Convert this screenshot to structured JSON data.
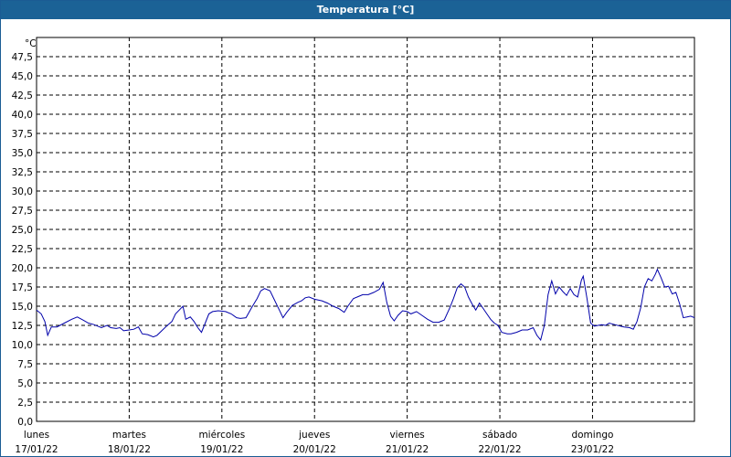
{
  "window": {
    "title": "Temperatura [°C]"
  },
  "chart_data": {
    "type": "line",
    "title": "Temperatura [°C]",
    "ylabel": "°C",
    "ylim": [
      0,
      50
    ],
    "grid": true,
    "y_ticks": [
      "0,0",
      "2,5",
      "5,0",
      "7,5",
      "10,0",
      "12,5",
      "15,0",
      "17,5",
      "20,0",
      "22,5",
      "25,0",
      "27,5",
      "30,0",
      "32,5",
      "35,0",
      "37,5",
      "40,0",
      "42,5",
      "45,0",
      "47,5"
    ],
    "x_ticks": [
      {
        "day": "lunes",
        "date": "17/01/22"
      },
      {
        "day": "martes",
        "date": "18/01/22"
      },
      {
        "day": "miércoles",
        "date": "19/01/22"
      },
      {
        "day": "jueves",
        "date": "20/01/22"
      },
      {
        "day": "viernes",
        "date": "21/01/22"
      },
      {
        "day": "sábado",
        "date": "22/01/22"
      },
      {
        "day": "domingo",
        "date": "23/01/22"
      }
    ],
    "xlim_days": [
      0,
      7
    ],
    "series": [
      {
        "color": "#0000aa",
        "points": [
          [
            0.0,
            14.5
          ],
          [
            0.05,
            14.0
          ],
          [
            0.09,
            13.0
          ],
          [
            0.12,
            11.2
          ],
          [
            0.16,
            12.3
          ],
          [
            0.22,
            12.3
          ],
          [
            0.3,
            12.8
          ],
          [
            0.38,
            13.3
          ],
          [
            0.44,
            13.6
          ],
          [
            0.5,
            13.2
          ],
          [
            0.56,
            12.8
          ],
          [
            0.62,
            12.6
          ],
          [
            0.7,
            12.2
          ],
          [
            0.76,
            12.5
          ],
          [
            0.8,
            12.2
          ],
          [
            0.86,
            12.1
          ],
          [
            0.9,
            12.2
          ],
          [
            0.94,
            11.8
          ],
          [
            1.0,
            11.9
          ],
          [
            1.05,
            12.0
          ],
          [
            1.1,
            12.3
          ],
          [
            1.14,
            11.4
          ],
          [
            1.2,
            11.3
          ],
          [
            1.26,
            11.0
          ],
          [
            1.3,
            11.2
          ],
          [
            1.36,
            11.9
          ],
          [
            1.42,
            12.6
          ],
          [
            1.46,
            13.0
          ],
          [
            1.5,
            14.0
          ],
          [
            1.54,
            14.5
          ],
          [
            1.58,
            15.0
          ],
          [
            1.61,
            13.3
          ],
          [
            1.66,
            13.6
          ],
          [
            1.7,
            13.0
          ],
          [
            1.74,
            12.2
          ],
          [
            1.78,
            11.6
          ],
          [
            1.82,
            12.8
          ],
          [
            1.86,
            14.0
          ],
          [
            1.9,
            14.3
          ],
          [
            1.96,
            14.4
          ],
          [
            2.04,
            14.3
          ],
          [
            2.1,
            14.0
          ],
          [
            2.16,
            13.5
          ],
          [
            2.2,
            13.4
          ],
          [
            2.26,
            13.5
          ],
          [
            2.32,
            14.8
          ],
          [
            2.38,
            16.0
          ],
          [
            2.42,
            17.0
          ],
          [
            2.46,
            17.3
          ],
          [
            2.52,
            17.0
          ],
          [
            2.56,
            16.0
          ],
          [
            2.62,
            14.5
          ],
          [
            2.66,
            13.5
          ],
          [
            2.7,
            14.2
          ],
          [
            2.76,
            15.1
          ],
          [
            2.82,
            15.5
          ],
          [
            2.86,
            15.7
          ],
          [
            2.9,
            16.1
          ],
          [
            2.94,
            16.2
          ],
          [
            3.0,
            15.9
          ],
          [
            3.08,
            15.7
          ],
          [
            3.14,
            15.4
          ],
          [
            3.2,
            15.0
          ],
          [
            3.26,
            14.7
          ],
          [
            3.32,
            14.2
          ],
          [
            3.36,
            15.0
          ],
          [
            3.42,
            16.0
          ],
          [
            3.48,
            16.3
          ],
          [
            3.52,
            16.5
          ],
          [
            3.58,
            16.5
          ],
          [
            3.64,
            16.8
          ],
          [
            3.7,
            17.2
          ],
          [
            3.74,
            18.1
          ],
          [
            3.78,
            15.5
          ],
          [
            3.82,
            13.7
          ],
          [
            3.86,
            13.1
          ],
          [
            3.9,
            13.8
          ],
          [
            3.95,
            14.4
          ],
          [
            4.0,
            14.3
          ],
          [
            4.04,
            14.0
          ],
          [
            4.1,
            14.3
          ],
          [
            4.16,
            13.8
          ],
          [
            4.22,
            13.3
          ],
          [
            4.28,
            12.9
          ],
          [
            4.34,
            12.9
          ],
          [
            4.4,
            13.2
          ],
          [
            4.46,
            14.8
          ],
          [
            4.5,
            16.0
          ],
          [
            4.54,
            17.4
          ],
          [
            4.58,
            17.9
          ],
          [
            4.62,
            17.5
          ],
          [
            4.66,
            16.2
          ],
          [
            4.7,
            15.3
          ],
          [
            4.74,
            14.5
          ],
          [
            4.78,
            15.4
          ],
          [
            4.82,
            14.7
          ],
          [
            4.86,
            14.0
          ],
          [
            4.9,
            13.3
          ],
          [
            4.94,
            12.8
          ],
          [
            4.98,
            12.5
          ],
          [
            5.02,
            11.6
          ],
          [
            5.08,
            11.4
          ],
          [
            5.12,
            11.4
          ],
          [
            5.18,
            11.6
          ],
          [
            5.24,
            11.9
          ],
          [
            5.3,
            11.9
          ],
          [
            5.36,
            12.2
          ],
          [
            5.4,
            11.2
          ],
          [
            5.44,
            10.6
          ],
          [
            5.48,
            12.5
          ],
          [
            5.52,
            16.5
          ],
          [
            5.56,
            18.3
          ],
          [
            5.6,
            16.6
          ],
          [
            5.64,
            17.5
          ],
          [
            5.68,
            16.9
          ],
          [
            5.72,
            16.4
          ],
          [
            5.76,
            17.3
          ],
          [
            5.8,
            16.5
          ],
          [
            5.84,
            16.2
          ],
          [
            5.88,
            18.4
          ],
          [
            5.9,
            18.9
          ],
          [
            5.94,
            16.0
          ],
          [
            5.98,
            12.8
          ],
          [
            6.02,
            12.4
          ],
          [
            6.06,
            12.5
          ],
          [
            6.1,
            12.6
          ],
          [
            6.14,
            12.5
          ],
          [
            6.18,
            12.8
          ],
          [
            6.24,
            12.6
          ],
          [
            6.3,
            12.4
          ],
          [
            6.34,
            12.3
          ],
          [
            6.4,
            12.2
          ],
          [
            6.44,
            12.0
          ],
          [
            6.48,
            13.0
          ],
          [
            6.52,
            14.8
          ],
          [
            6.56,
            17.5
          ],
          [
            6.6,
            18.6
          ],
          [
            6.64,
            18.3
          ],
          [
            6.68,
            19.2
          ],
          [
            6.7,
            19.8
          ],
          [
            6.74,
            18.7
          ],
          [
            6.78,
            17.5
          ],
          [
            6.82,
            17.6
          ],
          [
            6.86,
            16.6
          ],
          [
            6.9,
            16.8
          ],
          [
            6.94,
            15.3
          ],
          [
            6.98,
            13.5
          ],
          [
            7.02,
            13.6
          ],
          [
            7.06,
            13.7
          ],
          [
            7.1,
            13.5
          ]
        ]
      }
    ]
  }
}
